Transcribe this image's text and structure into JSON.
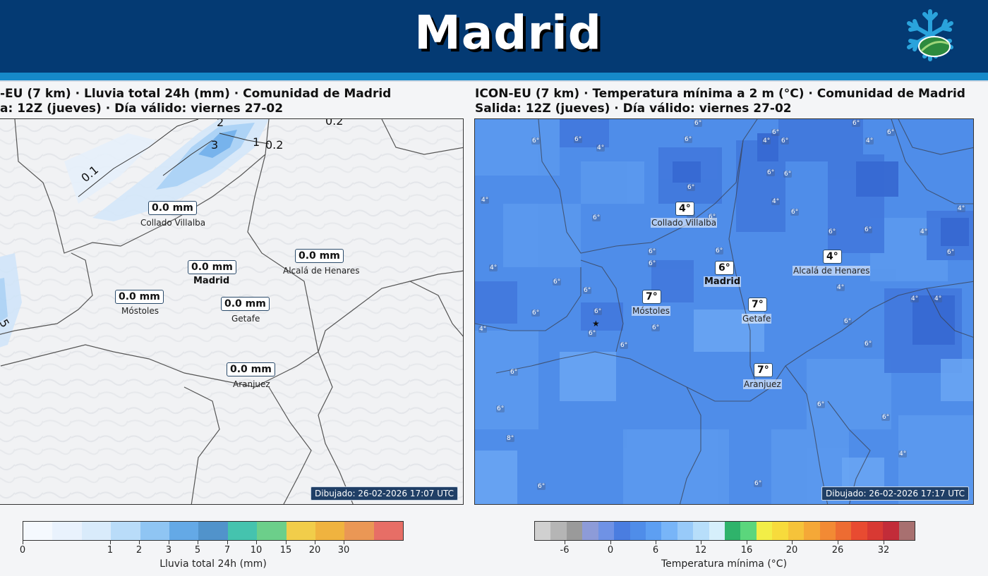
{
  "header": {
    "title": "Madrid",
    "logo_icon": "snowflake-leaf-logo-icon"
  },
  "left_panel": {
    "title_line1": "-EU (7 km) · Lluvia total 24h (mm) · Comunidad de Madrid",
    "title_line2": "a: 12Z (jueves) · Día válido: viernes 27-02",
    "stamp": "Dibujado: 26-02-2026 17:07 UTC",
    "contour_labels": [
      "2",
      "3",
      "1",
      "0.2",
      "0.1",
      "5",
      "0.2"
    ],
    "cities": [
      {
        "value": "0.0 mm",
        "name": "Collado Villalba"
      },
      {
        "value": "0.0 mm",
        "name": "Madrid"
      },
      {
        "value": "0.0 mm",
        "name": "Alcalá de Henares"
      },
      {
        "value": "0.0 mm",
        "name": "Móstoles"
      },
      {
        "value": "0.0 mm",
        "name": "Getafe"
      },
      {
        "value": "0.0 mm",
        "name": "Aranjuez"
      }
    ],
    "colorbar": {
      "label": "Lluvia total 24h (mm)",
      "colors": [
        "#f5f9fe",
        "#e9f2fd",
        "#d9ebfb",
        "#b9dcf9",
        "#8fc5f3",
        "#64a9e6",
        "#5193cb",
        "#45c3ae",
        "#6ccf8a",
        "#f1cd4a",
        "#f0b33f",
        "#ea9755",
        "#e76e66"
      ],
      "ticks": [
        "0",
        "1",
        "2",
        "3",
        "5",
        "7",
        "10",
        "15",
        "20",
        "30"
      ]
    }
  },
  "right_panel": {
    "title_line1": "ICON-EU (7 km) · Temperatura mínima a 2 m (°C) · Comunidad de Madrid",
    "title_line2": "Salida: 12Z (jueves) · Día válido: viernes 27-02",
    "stamp": "Dibujado: 26-02-2026 17:17 UTC",
    "cities": [
      {
        "value": "4°",
        "name": "Collado Villalba"
      },
      {
        "value": "6°",
        "name": "Madrid"
      },
      {
        "value": "4°",
        "name": "Alcalá de Henares"
      },
      {
        "value": "7°",
        "name": "Móstoles"
      },
      {
        "value": "7°",
        "name": "Getafe"
      },
      {
        "value": "7°",
        "name": "Aranjuez"
      }
    ],
    "small_labels": [
      "6°",
      "6°",
      "4°",
      "6°",
      "6°",
      "4°",
      "6°",
      "6°",
      "6°",
      "4°",
      "6°",
      "6°",
      "6°",
      "4°",
      "6°",
      "6°",
      "6°",
      "4°",
      "6°",
      "6°",
      "4°",
      "4°",
      "6°",
      "4°",
      "6°",
      "6°",
      "6°",
      "4°",
      "6°",
      "6°",
      "6°",
      "6°",
      "6°",
      "8°",
      "6°",
      "6°",
      "6°",
      "6°",
      "6°",
      "6°",
      "4°",
      "4°",
      "4°",
      "4°",
      "6°",
      "6°",
      "6°",
      "6°",
      "6°",
      "6°"
    ],
    "colorbar": {
      "label": "Temperatura mínima (°C)",
      "colors": [
        "#d0d0d0",
        "#b5b5b5",
        "#9a9a9a",
        "#8d9bd8",
        "#6f92e5",
        "#4a7de0",
        "#4f8de9",
        "#5d9ff2",
        "#78b5f8",
        "#98caf9",
        "#b7defa",
        "#d6effb",
        "#2fb36b",
        "#5bd67c",
        "#f2ee47",
        "#f7db3c",
        "#f6c33a",
        "#f5a837",
        "#f28a34",
        "#ed6c32",
        "#e84b31",
        "#d83933",
        "#c22c39",
        "#a87070"
      ],
      "ticks": [
        "-6",
        "0",
        "6",
        "12",
        "16",
        "20",
        "26",
        "32"
      ]
    }
  }
}
